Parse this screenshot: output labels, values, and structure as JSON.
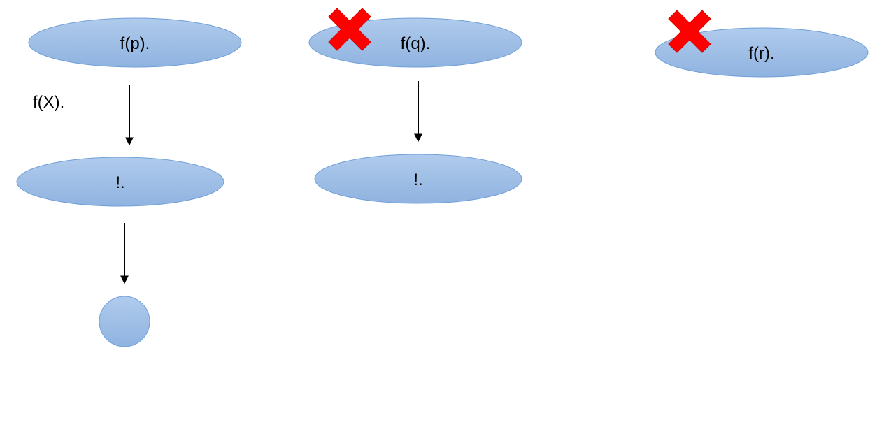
{
  "diagram": {
    "nodes": {
      "fp": "f(p).",
      "fq": "f(q).",
      "fr": "f(r).",
      "cut_left": "!.",
      "cut_mid": "!."
    },
    "edge_label": "f(X).",
    "colors": {
      "node_fill_top": "#b0cbec",
      "node_fill_bottom": "#8fb3e0",
      "node_stroke": "#6f9fd8",
      "cross": "#ff0000",
      "arrow": "#000000"
    },
    "failure_marker_icon": "cross-icon"
  }
}
